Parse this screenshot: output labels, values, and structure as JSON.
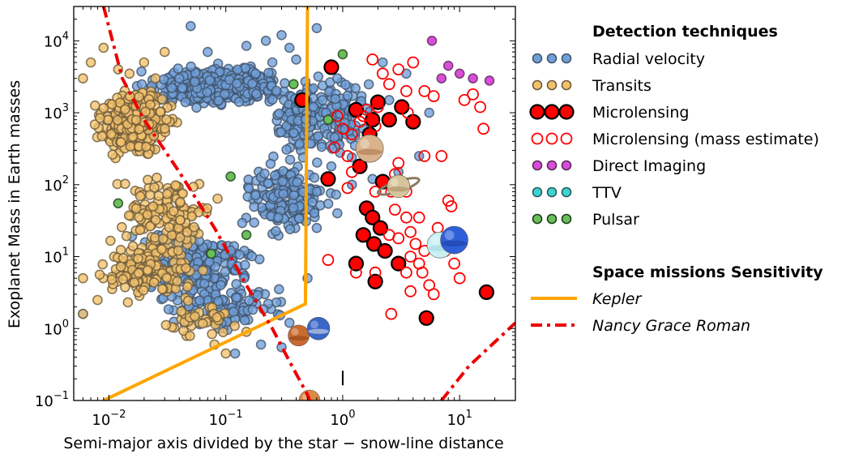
{
  "chart_data": {
    "type": "scatter",
    "xlabel": "Semi-major axis divided by the star − snow-line distance",
    "ylabel": "Exoplanet Mass in Earth masses",
    "xscale": "log",
    "yscale": "log",
    "xlim": [
      0.005,
      30
    ],
    "ylim": [
      0.1,
      30000
    ],
    "xticks": [
      {
        "value": 0.01,
        "base": "10",
        "exp": "−2"
      },
      {
        "value": 0.1,
        "base": "10",
        "exp": "−1"
      },
      {
        "value": 1,
        "base": "10",
        "exp": "0"
      },
      {
        "value": 10,
        "base": "10",
        "exp": "1"
      }
    ],
    "yticks": [
      {
        "value": 0.1,
        "base": "10",
        "exp": "−1"
      },
      {
        "value": 1,
        "base": "10",
        "exp": "0"
      },
      {
        "value": 10,
        "base": "10",
        "exp": "1"
      },
      {
        "value": 100,
        "base": "10",
        "exp": "2"
      },
      {
        "value": 1000,
        "base": "10",
        "exp": "3"
      },
      {
        "value": 10000,
        "base": "10",
        "exp": "4"
      }
    ],
    "legend_position": "right",
    "legend_title": "Detection techniques",
    "missions_title": "Space missions Sensitivity",
    "series": [
      {
        "name": "Radial velocity",
        "marker": "filled",
        "color": "#6f9fd8",
        "edge": "#41546b",
        "clusters": [
          {
            "count": 420,
            "x": [
              0.015,
              0.45
            ],
            "y": [
              1000,
              5000
            ],
            "seed": 11
          },
          {
            "count": 140,
            "x": [
              0.2,
              1.0
            ],
            "y": [
              200,
              4000
            ],
            "seed": 12
          },
          {
            "count": 220,
            "x": [
              0.01,
              0.25
            ],
            "y": [
              2,
              30
            ],
            "seed": 13
          },
          {
            "count": 160,
            "x": [
              0.1,
              1.0
            ],
            "y": [
              15,
              300
            ],
            "seed": 14
          },
          {
            "count": 100,
            "x": [
              0.02,
              0.4
            ],
            "y": [
              0.8,
              5
            ],
            "seed": 15
          },
          {
            "count": 80,
            "x": [
              0.5,
              2.0
            ],
            "y": [
              200,
              5000
            ],
            "seed": 16
          }
        ],
        "points": [
          {
            "x": 0.05,
            "y": 16000
          },
          {
            "x": 0.3,
            "y": 12000
          },
          {
            "x": 0.22,
            "y": 10000
          },
          {
            "x": 0.15,
            "y": 8500
          },
          {
            "x": 0.07,
            "y": 7000
          },
          {
            "x": 0.4,
            "y": 5500
          },
          {
            "x": 0.6,
            "y": 15000
          },
          {
            "x": 0.35,
            "y": 8000
          },
          {
            "x": 0.25,
            "y": 5000
          },
          {
            "x": 0.18,
            "y": 3500
          },
          {
            "x": 0.04,
            "y": 3000
          },
          {
            "x": 0.04,
            "y": 16
          },
          {
            "x": 0.8,
            "y": 180
          },
          {
            "x": 0.9,
            "y": 40
          },
          {
            "x": 0.6,
            "y": 25
          },
          {
            "x": 0.5,
            "y": 5
          },
          {
            "x": 0.35,
            "y": 1.2
          },
          {
            "x": 0.12,
            "y": 0.45
          },
          {
            "x": 0.3,
            "y": 0.55
          },
          {
            "x": 0.9,
            "y": 3000
          },
          {
            "x": 1.5,
            "y": 600
          },
          {
            "x": 3.0,
            "y": 150
          },
          {
            "x": 5.5,
            "y": 1000
          },
          {
            "x": 4.5,
            "y": 250
          },
          {
            "x": 1.2,
            "y": 100
          },
          {
            "x": 1.8,
            "y": 120
          },
          {
            "x": 2.5,
            "y": 1500
          },
          {
            "x": 3.5,
            "y": 3500
          },
          {
            "x": 2.2,
            "y": 5000
          },
          {
            "x": 0.006,
            "y": 1.6
          },
          {
            "x": 0.2,
            "y": 0.6
          },
          {
            "x": 0.6,
            "y": 80
          }
        ]
      },
      {
        "name": "Transits",
        "marker": "filled",
        "color": "#f4c26b",
        "edge": "#6b5a3a",
        "clusters": [
          {
            "count": 420,
            "x": [
              0.007,
              0.04
            ],
            "y": [
              200,
              2500
            ],
            "seed": 21
          },
          {
            "count": 140,
            "x": [
              0.01,
              0.1
            ],
            "y": [
              6,
              200
            ],
            "seed": 22
          },
          {
            "count": 130,
            "x": [
              0.006,
              0.08
            ],
            "y": [
              2,
              18
            ],
            "seed": 23
          },
          {
            "count": 40,
            "x": [
              0.02,
              0.2
            ],
            "y": [
              0.6,
              3
            ],
            "seed": 24
          }
        ],
        "points": [
          {
            "x": 0.009,
            "y": 8000
          },
          {
            "x": 0.02,
            "y": 5000
          },
          {
            "x": 0.012,
            "y": 4000
          },
          {
            "x": 0.007,
            "y": 5000
          },
          {
            "x": 0.006,
            "y": 3000
          },
          {
            "x": 0.015,
            "y": 3500
          },
          {
            "x": 0.025,
            "y": 3000
          },
          {
            "x": 0.03,
            "y": 7000
          },
          {
            "x": 0.006,
            "y": 1.6
          },
          {
            "x": 0.006,
            "y": 5
          },
          {
            "x": 0.008,
            "y": 2.5
          },
          {
            "x": 0.1,
            "y": 0.45
          },
          {
            "x": 0.08,
            "y": 0.6
          },
          {
            "x": 0.15,
            "y": 0.9
          }
        ]
      },
      {
        "name": "Microlensing",
        "marker": "filled-large",
        "color": "#ff0000",
        "edge": "#000000",
        "points": [
          {
            "x": 0.8,
            "y": 4300
          },
          {
            "x": 0.45,
            "y": 1500
          },
          {
            "x": 1.3,
            "y": 1100
          },
          {
            "x": 1.8,
            "y": 800
          },
          {
            "x": 2.0,
            "y": 1400
          },
          {
            "x": 2.5,
            "y": 800
          },
          {
            "x": 3.2,
            "y": 1200
          },
          {
            "x": 4.0,
            "y": 750
          },
          {
            "x": 1.7,
            "y": 500
          },
          {
            "x": 0.75,
            "y": 120
          },
          {
            "x": 1.4,
            "y": 180
          },
          {
            "x": 2.2,
            "y": 110
          },
          {
            "x": 1.6,
            "y": 47
          },
          {
            "x": 1.8,
            "y": 35
          },
          {
            "x": 2.1,
            "y": 25
          },
          {
            "x": 1.5,
            "y": 20
          },
          {
            "x": 1.85,
            "y": 15
          },
          {
            "x": 2.3,
            "y": 12
          },
          {
            "x": 1.3,
            "y": 8
          },
          {
            "x": 3.0,
            "y": 8
          },
          {
            "x": 1.9,
            "y": 4.5
          },
          {
            "x": 5.2,
            "y": 1.4
          },
          {
            "x": 17,
            "y": 3.2
          }
        ]
      },
      {
        "name": "Microlensing (mass estimate)",
        "marker": "hollow",
        "color": "#ff0000",
        "edge": "#ff0000",
        "points": [
          {
            "x": 1.8,
            "y": 5500
          },
          {
            "x": 2.2,
            "y": 3500
          },
          {
            "x": 3.0,
            "y": 4000
          },
          {
            "x": 4.0,
            "y": 5000
          },
          {
            "x": 5.0,
            "y": 2000
          },
          {
            "x": 6.0,
            "y": 1700
          },
          {
            "x": 11,
            "y": 1500
          },
          {
            "x": 13,
            "y": 1800
          },
          {
            "x": 15,
            "y": 1200
          },
          {
            "x": 2.5,
            "y": 2500
          },
          {
            "x": 3.5,
            "y": 2000
          },
          {
            "x": 2.0,
            "y": 1200
          },
          {
            "x": 1.6,
            "y": 1100
          },
          {
            "x": 1.5,
            "y": 900
          },
          {
            "x": 3.6,
            "y": 1000
          },
          {
            "x": 0.9,
            "y": 900
          },
          {
            "x": 1.0,
            "y": 600
          },
          {
            "x": 1.2,
            "y": 500
          },
          {
            "x": 1.4,
            "y": 750
          },
          {
            "x": 1.9,
            "y": 650
          },
          {
            "x": 1.1,
            "y": 250
          },
          {
            "x": 0.85,
            "y": 330
          },
          {
            "x": 5.0,
            "y": 250
          },
          {
            "x": 7.0,
            "y": 250
          },
          {
            "x": 16,
            "y": 600
          },
          {
            "x": 3.0,
            "y": 200
          },
          {
            "x": 1.2,
            "y": 150
          },
          {
            "x": 2.8,
            "y": 140
          },
          {
            "x": 1.9,
            "y": 80
          },
          {
            "x": 2.6,
            "y": 80
          },
          {
            "x": 3.5,
            "y": 80
          },
          {
            "x": 1.1,
            "y": 90
          },
          {
            "x": 2.8,
            "y": 45
          },
          {
            "x": 3.5,
            "y": 35
          },
          {
            "x": 4.5,
            "y": 35
          },
          {
            "x": 2.5,
            "y": 20
          },
          {
            "x": 3.0,
            "y": 18
          },
          {
            "x": 3.8,
            "y": 22
          },
          {
            "x": 4.2,
            "y": 15
          },
          {
            "x": 5.0,
            "y": 12
          },
          {
            "x": 4.5,
            "y": 8
          },
          {
            "x": 3.5,
            "y": 6
          },
          {
            "x": 4.8,
            "y": 6
          },
          {
            "x": 3.8,
            "y": 3.3
          },
          {
            "x": 5.5,
            "y": 4
          },
          {
            "x": 6.0,
            "y": 3
          },
          {
            "x": 2.6,
            "y": 1.6
          },
          {
            "x": 1.9,
            "y": 6
          },
          {
            "x": 1.3,
            "y": 6
          },
          {
            "x": 0.75,
            "y": 9
          },
          {
            "x": 8.0,
            "y": 60
          },
          {
            "x": 8.5,
            "y": 50
          },
          {
            "x": 6.5,
            "y": 25
          },
          {
            "x": 9.0,
            "y": 8
          },
          {
            "x": 10,
            "y": 5
          },
          {
            "x": 7.5,
            "y": 12
          },
          {
            "x": 3.8,
            "y": 10
          }
        ]
      },
      {
        "name": "Direct Imaging",
        "marker": "filled",
        "color": "#d94ed9",
        "edge": "#5a2b5a",
        "points": [
          {
            "x": 5.8,
            "y": 10000
          },
          {
            "x": 8.0,
            "y": 4500
          },
          {
            "x": 10.0,
            "y": 3500
          },
          {
            "x": 7.0,
            "y": 3000
          },
          {
            "x": 13.0,
            "y": 3000
          },
          {
            "x": 18.0,
            "y": 2800
          }
        ]
      },
      {
        "name": "TTV",
        "marker": "filled",
        "color": "#3fd2d2",
        "edge": "#2b5a5a",
        "points": []
      },
      {
        "name": "Pulsar",
        "marker": "filled",
        "color": "#6abf5a",
        "edge": "#1e3d1a",
        "points": [
          {
            "x": 1.0,
            "y": 6500
          },
          {
            "x": 0.38,
            "y": 2500
          },
          {
            "x": 0.75,
            "y": 800
          },
          {
            "x": 0.012,
            "y": 55
          },
          {
            "x": 0.11,
            "y": 130
          },
          {
            "x": 0.15,
            "y": 20
          },
          {
            "x": 0.075,
            "y": 11
          }
        ]
      }
    ],
    "missions": [
      {
        "name": "Kepler",
        "color": "#ffa500",
        "style": "solid",
        "path": [
          [
            0.009,
            0.1
          ],
          [
            0.48,
            2.2
          ],
          [
            0.5,
            30000
          ]
        ]
      },
      {
        "name": "Nancy Grace Roman",
        "color": "#ee0000",
        "style": "dashdot",
        "path": [
          [
            0.009,
            30000
          ],
          [
            0.013,
            3000
          ],
          [
            0.02,
            800
          ],
          [
            0.04,
            150
          ],
          [
            0.08,
            25
          ],
          [
            0.15,
            4
          ],
          [
            0.25,
            1.0
          ],
          [
            0.35,
            0.35
          ],
          [
            0.5,
            0.12
          ],
          [
            0.52,
            0.1
          ]
        ],
        "path2": [
          [
            7.0,
            0.1
          ],
          [
            12.0,
            0.3
          ],
          [
            20.0,
            0.65
          ],
          [
            30.0,
            1.2
          ]
        ]
      }
    ],
    "solar_system": [
      {
        "name": "Jupiter",
        "x": 1.7,
        "y": 318,
        "fill": "#d9b38c",
        "band": "#a8714a",
        "r": 17
      },
      {
        "name": "Saturn",
        "x": 3.0,
        "y": 95,
        "fill": "#d8c49a",
        "band": "#a28a60",
        "r": 14,
        "ring": true
      },
      {
        "name": "Uranus",
        "x": 6.8,
        "y": 14.5,
        "fill": "#c8f0f5",
        "band": "#9ed6de",
        "r": 16
      },
      {
        "name": "Neptune",
        "x": 9.0,
        "y": 17,
        "fill": "#2f5fd8",
        "band": "#1c3c9a",
        "r": 17
      },
      {
        "name": "Mars",
        "x": 0.42,
        "y": 0.8,
        "fill": "#c96a30",
        "band": "#8a3f18",
        "r": 13
      },
      {
        "name": "Earth",
        "x": 0.62,
        "y": 1.0,
        "fill": "#3a66c8",
        "band": "#e8e8e8",
        "r": 14
      },
      {
        "name": "Venus",
        "x": 0.52,
        "y": 0.1,
        "fill": "#d98a45",
        "band": "#f0c08a",
        "r": 13
      }
    ],
    "snow_line_marker": {
      "x": 1.0,
      "y": 0.2,
      "label": "I"
    }
  }
}
